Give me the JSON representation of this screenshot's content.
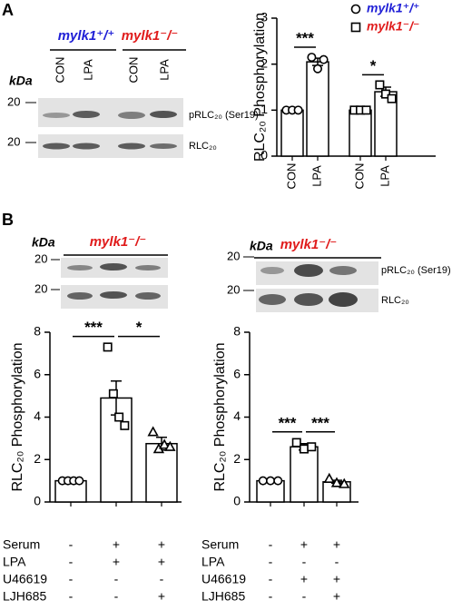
{
  "panels": [
    "A",
    "B"
  ],
  "blots": [
    {
      "unit": "kDa",
      "groups": [
        {
          "title": "mylk1⁺/⁺",
          "color": "#1f1fd6"
        },
        {
          "title": "mylk1⁻/⁻",
          "color": "#e01b1b"
        }
      ],
      "lanes": [
        "CON",
        "LPA",
        "CON",
        "LPA"
      ],
      "markers": [
        "20",
        "20"
      ],
      "rows": [
        "pRLC₂₀ (Ser19)",
        "RLC₂₀"
      ]
    },
    {
      "unit": "kDa",
      "groups": [
        {
          "title": "mylk1⁻/⁻",
          "color": "#e01b1b"
        }
      ],
      "markers": [
        "20",
        "20"
      ]
    },
    {
      "unit": "kDa",
      "groups": [
        {
          "title": "mylk1⁻/⁻",
          "color": "#e01b1b"
        }
      ],
      "markers": [
        "20",
        "20"
      ],
      "rows": [
        "pRLC₂₀ (Ser19)",
        "RLC₂₀"
      ]
    }
  ],
  "chart_data": [
    {
      "type": "bar",
      "ylabel": "RLC₂₀ Phosphorylation",
      "categories": [
        "CON",
        "LPA",
        "CON",
        "LPA"
      ],
      "series": [
        {
          "name": "mylk1⁺/⁺",
          "color": "#1f1fd6",
          "markers": [
            "circle",
            "circle",
            null,
            null
          ],
          "values": [
            1,
            2.05,
            null,
            null
          ],
          "errors": [
            null,
            0.08,
            null,
            null
          ],
          "points": [
            [
              1,
              1,
              1
            ],
            [
              2.15,
              1.9,
              2.1
            ],
            null,
            null
          ]
        },
        {
          "name": "mylk1⁻/⁻",
          "color": "#e01b1b",
          "markers": [
            null,
            null,
            "square",
            "square"
          ],
          "values": [
            null,
            null,
            1,
            1.4
          ],
          "errors": [
            null,
            null,
            null,
            0.1
          ],
          "points": [
            null,
            null,
            [
              1,
              1,
              1
            ],
            [
              1.55,
              1.35,
              1.25
            ]
          ]
        }
      ],
      "ylim": [
        0,
        3
      ],
      "yticks": [
        0,
        1,
        2,
        3
      ],
      "significance": [
        {
          "categories": [
            0,
            1
          ],
          "label": "***"
        },
        {
          "categories": [
            2,
            3
          ],
          "label": "*"
        }
      ]
    },
    {
      "type": "bar",
      "ylabel": "RLC₂₀ Phosphorylation",
      "categories": [
        null,
        null,
        null
      ],
      "series": [
        {
          "markers": [
            "circle",
            "square",
            "triangle"
          ],
          "values": [
            1,
            4.9,
            2.75
          ],
          "errors": [
            null,
            0.8,
            0.3
          ],
          "points": [
            [
              1,
              1,
              1,
              1
            ],
            [
              7.3,
              5.1,
              4.0,
              3.6
            ],
            [
              3.3,
              2.5,
              2.7,
              2.6
            ]
          ]
        }
      ],
      "ylim": [
        0,
        8
      ],
      "yticks": [
        0,
        2,
        4,
        6,
        8
      ],
      "significance": [
        {
          "categories": [
            0,
            1
          ],
          "label": "***"
        },
        {
          "categories": [
            1,
            2
          ],
          "label": "*"
        }
      ],
      "treatment_labels": [
        "Serum",
        "LPA",
        "U46619",
        "LJH685"
      ],
      "treatments": [
        [
          "-",
          "+",
          "+"
        ],
        [
          "-",
          "+",
          "+"
        ],
        [
          "-",
          "-",
          "-"
        ],
        [
          "-",
          "-",
          "+"
        ]
      ]
    },
    {
      "type": "bar",
      "ylabel": "RLC₂₀ Phosphorylation",
      "categories": [
        null,
        null,
        null
      ],
      "series": [
        {
          "markers": [
            "circle",
            "square",
            "triangle"
          ],
          "values": [
            1,
            2.6,
            0.95
          ],
          "errors": [
            null,
            0.15,
            0.07
          ],
          "points": [
            [
              1,
              1,
              1
            ],
            [
              2.8,
              2.5,
              2.6
            ],
            [
              1.1,
              0.9,
              0.85
            ]
          ]
        }
      ],
      "ylim": [
        0,
        8
      ],
      "yticks": [
        0,
        2,
        4,
        6,
        8
      ],
      "significance": [
        {
          "categories": [
            0,
            1
          ],
          "label": "***"
        },
        {
          "categories": [
            1,
            2
          ],
          "label": "***"
        }
      ],
      "treatment_labels": [
        "Serum",
        "LPA",
        "U46619",
        "LJH685"
      ],
      "treatments": [
        [
          "-",
          "+",
          "+"
        ],
        [
          "-",
          "-",
          "-"
        ],
        [
          "-",
          "+",
          "+"
        ],
        [
          "-",
          "-",
          "+"
        ]
      ]
    }
  ]
}
